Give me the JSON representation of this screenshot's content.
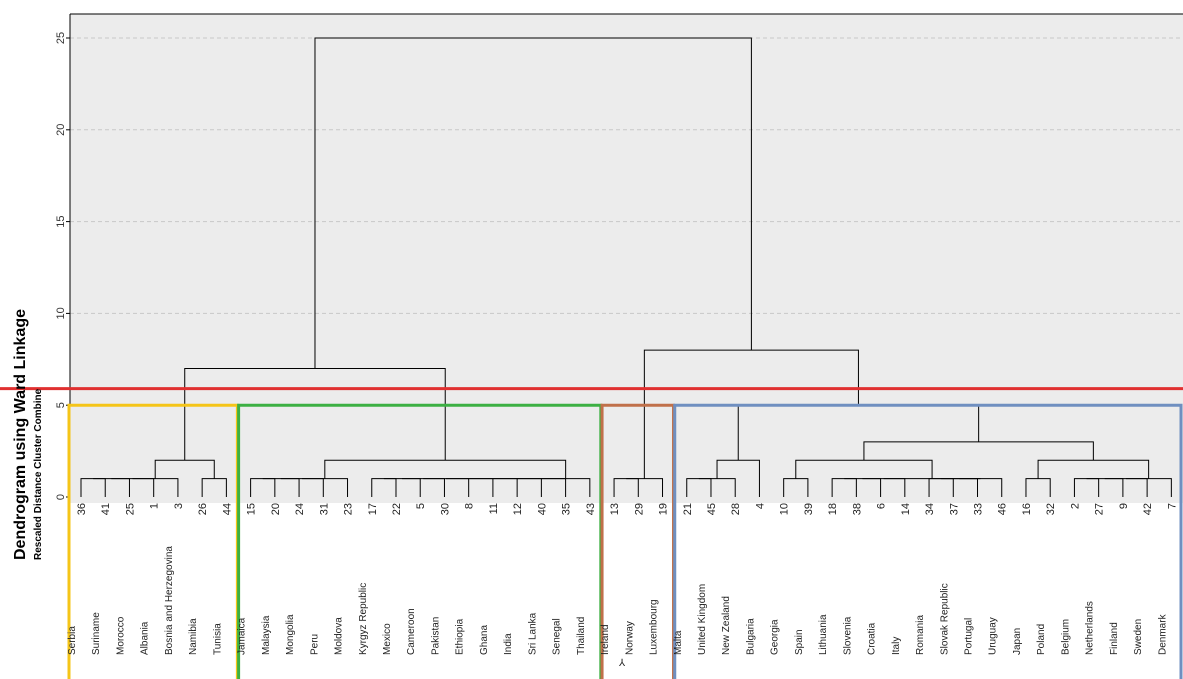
{
  "chart_data": {
    "type": "dendrogram",
    "title": "Dendrogram using Ward Linkage",
    "ylabel": "Rescaled Distance Cluster Combine",
    "ylim": [
      0,
      25
    ],
    "yticks": [
      0,
      5,
      10,
      15,
      20,
      25
    ],
    "grid": true,
    "leaves": [
      {
        "id": "36",
        "country": "Serbia"
      },
      {
        "id": "41",
        "country": "Suriname"
      },
      {
        "id": "25",
        "country": "Morocco"
      },
      {
        "id": "1",
        "country": "Albania"
      },
      {
        "id": "3",
        "country": "Bosnia and Herzegovina"
      },
      {
        "id": "26",
        "country": "Namibia"
      },
      {
        "id": "44",
        "country": "Tunisia"
      },
      {
        "id": "15",
        "country": "Jamaica"
      },
      {
        "id": "20",
        "country": "Malaysia"
      },
      {
        "id": "24",
        "country": "Mongolia"
      },
      {
        "id": "31",
        "country": "Peru"
      },
      {
        "id": "23",
        "country": "Moldova"
      },
      {
        "id": "17",
        "country": "Kyrgyz Republic"
      },
      {
        "id": "22",
        "country": "Mexico"
      },
      {
        "id": "5",
        "country": "Cameroon"
      },
      {
        "id": "30",
        "country": "Pakistan"
      },
      {
        "id": "8",
        "country": "Ethiopia"
      },
      {
        "id": "11",
        "country": "Ghana"
      },
      {
        "id": "12",
        "country": "India"
      },
      {
        "id": "40",
        "country": "Sri Lanka"
      },
      {
        "id": "35",
        "country": "Senegal"
      },
      {
        "id": "43",
        "country": "Thailand"
      },
      {
        "id": "13",
        "country": "Ireland"
      },
      {
        "id": "29",
        "country": "Norway"
      },
      {
        "id": "19",
        "country": "Luxembourg"
      },
      {
        "id": "21",
        "country": "Malta"
      },
      {
        "id": "45",
        "country": "United Kingdom"
      },
      {
        "id": "28",
        "country": "New Zealand"
      },
      {
        "id": "4",
        "country": "Bulgaria"
      },
      {
        "id": "10",
        "country": "Georgia"
      },
      {
        "id": "39",
        "country": "Spain"
      },
      {
        "id": "18",
        "country": "Lithuania"
      },
      {
        "id": "38",
        "country": "Slovenia"
      },
      {
        "id": "6",
        "country": "Croatia"
      },
      {
        "id": "14",
        "country": "Italy"
      },
      {
        "id": "34",
        "country": "Romania"
      },
      {
        "id": "37",
        "country": "Slovak Republic"
      },
      {
        "id": "33",
        "country": "Portugal"
      },
      {
        "id": "46",
        "country": "Uruguay"
      },
      {
        "id": "16",
        "country": "Japan"
      },
      {
        "id": "32",
        "country": "Poland"
      },
      {
        "id": "2",
        "country": "Belgium"
      },
      {
        "id": "27",
        "country": "Netherlands"
      },
      {
        "id": "9",
        "country": "Finland"
      },
      {
        "id": "42",
        "country": "Sweden"
      },
      {
        "id": "7",
        "country": "Denmark"
      }
    ],
    "merges": [
      {
        "children": [
          0,
          1
        ],
        "height": 1
      },
      {
        "children": [
          "c0",
          2
        ],
        "height": 1
      },
      {
        "children": [
          "c1",
          3
        ],
        "height": 1
      },
      {
        "children": [
          "c2",
          4
        ],
        "height": 1
      },
      {
        "children": [
          5,
          6
        ],
        "height": 1
      },
      {
        "children": [
          "c3",
          "c4"
        ],
        "height": 2
      },
      {
        "children": [
          7,
          8
        ],
        "height": 1
      },
      {
        "children": [
          "c6",
          9
        ],
        "height": 1
      },
      {
        "children": [
          "c7",
          10
        ],
        "height": 1
      },
      {
        "children": [
          "c8",
          11
        ],
        "height": 1
      },
      {
        "children": [
          12,
          13
        ],
        "height": 1
      },
      {
        "children": [
          "c10",
          14
        ],
        "height": 1
      },
      {
        "children": [
          "c11",
          15
        ],
        "height": 1
      },
      {
        "children": [
          "c12",
          16
        ],
        "height": 1
      },
      {
        "children": [
          "c13",
          17
        ],
        "height": 1
      },
      {
        "children": [
          "c14",
          18
        ],
        "height": 1
      },
      {
        "children": [
          "c15",
          19
        ],
        "height": 1
      },
      {
        "children": [
          "c16",
          20
        ],
        "height": 1
      },
      {
        "children": [
          "c17",
          21
        ],
        "height": 1
      },
      {
        "children": [
          "c9",
          "c18"
        ],
        "height": 2
      },
      {
        "children": [
          "c5",
          "c19"
        ],
        "height": 7
      },
      {
        "children": [
          22,
          23
        ],
        "height": 1
      },
      {
        "children": [
          "c21",
          24
        ],
        "height": 1
      },
      {
        "children": [
          25,
          26
        ],
        "height": 1
      },
      {
        "children": [
          "c23",
          27
        ],
        "height": 1
      },
      {
        "children": [
          "c24",
          28
        ],
        "height": 2
      },
      {
        "children": [
          29,
          30
        ],
        "height": 1
      },
      {
        "children": [
          31,
          32
        ],
        "height": 1
      },
      {
        "children": [
          "c27",
          33
        ],
        "height": 1
      },
      {
        "children": [
          "c28",
          34
        ],
        "height": 1
      },
      {
        "children": [
          35,
          36
        ],
        "height": 1
      },
      {
        "children": [
          "c30",
          37
        ],
        "height": 1
      },
      {
        "children": [
          "c31",
          38
        ],
        "height": 1
      },
      {
        "children": [
          "c29",
          "c32"
        ],
        "height": 1
      },
      {
        "children": [
          "c26",
          "c33"
        ],
        "height": 2
      },
      {
        "children": [
          39,
          40
        ],
        "height": 1
      },
      {
        "children": [
          41,
          42
        ],
        "height": 1
      },
      {
        "children": [
          "c36",
          43
        ],
        "height": 1
      },
      {
        "children": [
          "c37",
          44
        ],
        "height": 1
      },
      {
        "children": [
          "c38",
          45
        ],
        "height": 1
      },
      {
        "children": [
          "c35",
          "c39"
        ],
        "height": 2
      },
      {
        "children": [
          "c34",
          "c40"
        ],
        "height": 3
      },
      {
        "children": [
          "c25",
          "c41"
        ],
        "height": 5
      },
      {
        "children": [
          "c22",
          "c42"
        ],
        "height": 8
      },
      {
        "children": [
          "c20",
          "c43"
        ],
        "height": 25
      }
    ],
    "cut_line": {
      "height": 5.9,
      "color": "#e03030"
    },
    "cluster_boxes": [
      {
        "from_leaf": 0,
        "to_leaf": 6,
        "color": "#f5c518"
      },
      {
        "from_leaf": 7,
        "to_leaf": 21,
        "color": "#3cb043"
      },
      {
        "from_leaf": 22,
        "to_leaf": 24,
        "color": "#c0704a"
      },
      {
        "from_leaf": 25,
        "to_leaf": 45,
        "color": "#6f8fc0"
      }
    ],
    "annotation": "⅄",
    "colors": {
      "background": "#ececec",
      "line": "#000000",
      "grid": "#c8c8c8"
    }
  }
}
